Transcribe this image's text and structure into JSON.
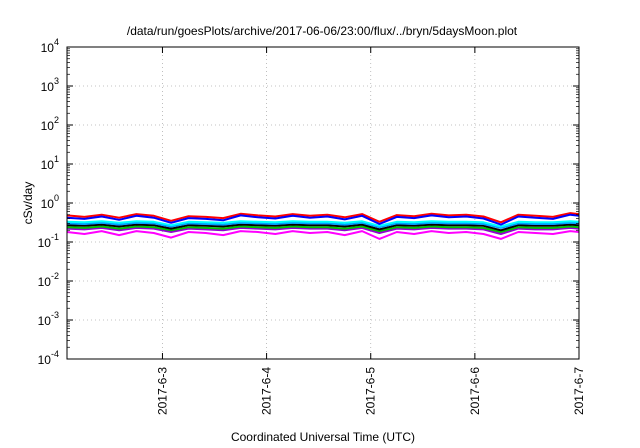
{
  "chart_data": {
    "type": "line",
    "title": "/data/run/goesPlots/archive/2017-06-06/23:00/flux/../bryn/5daysMoon.plot",
    "xlabel": "Coordinated Universal Time (UTC)",
    "ylabel": "cSv/day",
    "y_scale": "log",
    "ylim": [
      0.0001,
      10000
    ],
    "y_ticks": [
      {
        "base": "10",
        "exp": "-4"
      },
      {
        "base": "10",
        "exp": "-3"
      },
      {
        "base": "10",
        "exp": "-2"
      },
      {
        "base": "10",
        "exp": "-1"
      },
      {
        "base": "10",
        "exp": "0"
      },
      {
        "base": "10",
        "exp": "1"
      },
      {
        "base": "10",
        "exp": "2"
      },
      {
        "base": "10",
        "exp": "3"
      },
      {
        "base": "10",
        "exp": "4"
      }
    ],
    "xlim": [
      "2017-06-02T02:00",
      "2017-06-07T00:00"
    ],
    "x_ticks": [
      "2017-6-3",
      "2017-6-4",
      "2017-6-5",
      "2017-6-6",
      "2017-6-7"
    ],
    "grid": true,
    "colors": [
      "#ff00ff",
      "#9400d3",
      "#00c000",
      "#000000",
      "#00a0ff",
      "#00ffff",
      "#ff0000",
      "#0000ff"
    ],
    "x": [
      "2017-06-02T02:00",
      "2017-06-02T06:00",
      "2017-06-02T10:00",
      "2017-06-02T14:00",
      "2017-06-02T18:00",
      "2017-06-02T22:00",
      "2017-06-03T02:00",
      "2017-06-03T06:00",
      "2017-06-03T10:00",
      "2017-06-03T14:00",
      "2017-06-03T18:00",
      "2017-06-03T22:00",
      "2017-06-04T02:00",
      "2017-06-04T06:00",
      "2017-06-04T10:00",
      "2017-06-04T14:00",
      "2017-06-04T18:00",
      "2017-06-04T22:00",
      "2017-06-05T02:00",
      "2017-06-05T06:00",
      "2017-06-05T10:00",
      "2017-06-05T14:00",
      "2017-06-05T18:00",
      "2017-06-05T22:00",
      "2017-06-06T02:00",
      "2017-06-06T06:00",
      "2017-06-06T10:00",
      "2017-06-06T14:00",
      "2017-06-06T18:00",
      "2017-06-06T22:00",
      "2017-06-07T00:00"
    ],
    "series": [
      {
        "values": [
          0.18,
          0.16,
          0.19,
          0.15,
          0.19,
          0.17,
          0.13,
          0.18,
          0.17,
          0.15,
          0.19,
          0.18,
          0.16,
          0.19,
          0.17,
          0.18,
          0.15,
          0.19,
          0.12,
          0.18,
          0.16,
          0.19,
          0.17,
          0.18,
          0.16,
          0.12,
          0.18,
          0.17,
          0.16,
          0.19,
          0.18
        ]
      },
      {
        "values": [
          0.22,
          0.21,
          0.23,
          0.2,
          0.23,
          0.22,
          0.18,
          0.22,
          0.21,
          0.2,
          0.23,
          0.22,
          0.21,
          0.23,
          0.22,
          0.22,
          0.2,
          0.23,
          0.17,
          0.22,
          0.21,
          0.23,
          0.22,
          0.22,
          0.21,
          0.16,
          0.22,
          0.21,
          0.21,
          0.23,
          0.22
        ]
      },
      {
        "values": [
          0.24,
          0.23,
          0.25,
          0.22,
          0.25,
          0.24,
          0.2,
          0.24,
          0.23,
          0.22,
          0.25,
          0.24,
          0.23,
          0.25,
          0.24,
          0.24,
          0.22,
          0.25,
          0.19,
          0.24,
          0.23,
          0.25,
          0.24,
          0.24,
          0.23,
          0.18,
          0.24,
          0.23,
          0.23,
          0.25,
          0.24
        ]
      },
      {
        "values": [
          0.27,
          0.26,
          0.28,
          0.25,
          0.28,
          0.27,
          0.22,
          0.27,
          0.26,
          0.25,
          0.28,
          0.27,
          0.26,
          0.28,
          0.27,
          0.27,
          0.25,
          0.28,
          0.21,
          0.27,
          0.26,
          0.28,
          0.27,
          0.27,
          0.26,
          0.2,
          0.27,
          0.26,
          0.26,
          0.28,
          0.27
        ]
      },
      {
        "values": [
          0.3,
          0.29,
          0.31,
          0.28,
          0.31,
          0.3,
          0.25,
          0.3,
          0.29,
          0.28,
          0.31,
          0.3,
          0.29,
          0.31,
          0.3,
          0.3,
          0.28,
          0.31,
          0.24,
          0.3,
          0.29,
          0.31,
          0.3,
          0.3,
          0.29,
          0.23,
          0.3,
          0.29,
          0.29,
          0.31,
          0.3
        ]
      },
      {
        "values": [
          0.33,
          0.32,
          0.34,
          0.31,
          0.34,
          0.33,
          0.27,
          0.33,
          0.32,
          0.31,
          0.34,
          0.33,
          0.32,
          0.34,
          0.33,
          0.33,
          0.31,
          0.34,
          0.26,
          0.33,
          0.32,
          0.34,
          0.33,
          0.33,
          0.32,
          0.25,
          0.33,
          0.32,
          0.32,
          0.34,
          0.33
        ]
      },
      {
        "values": [
          0.48,
          0.44,
          0.5,
          0.42,
          0.52,
          0.47,
          0.35,
          0.46,
          0.44,
          0.41,
          0.53,
          0.48,
          0.45,
          0.52,
          0.47,
          0.5,
          0.43,
          0.52,
          0.33,
          0.49,
          0.46,
          0.53,
          0.48,
          0.5,
          0.45,
          0.32,
          0.5,
          0.47,
          0.44,
          0.55,
          0.52
        ]
      },
      {
        "values": [
          0.42,
          0.39,
          0.45,
          0.37,
          0.47,
          0.42,
          0.31,
          0.41,
          0.39,
          0.36,
          0.48,
          0.43,
          0.4,
          0.47,
          0.42,
          0.45,
          0.38,
          0.47,
          0.29,
          0.44,
          0.41,
          0.48,
          0.43,
          0.45,
          0.4,
          0.28,
          0.45,
          0.42,
          0.39,
          0.5,
          0.47
        ]
      }
    ]
  }
}
